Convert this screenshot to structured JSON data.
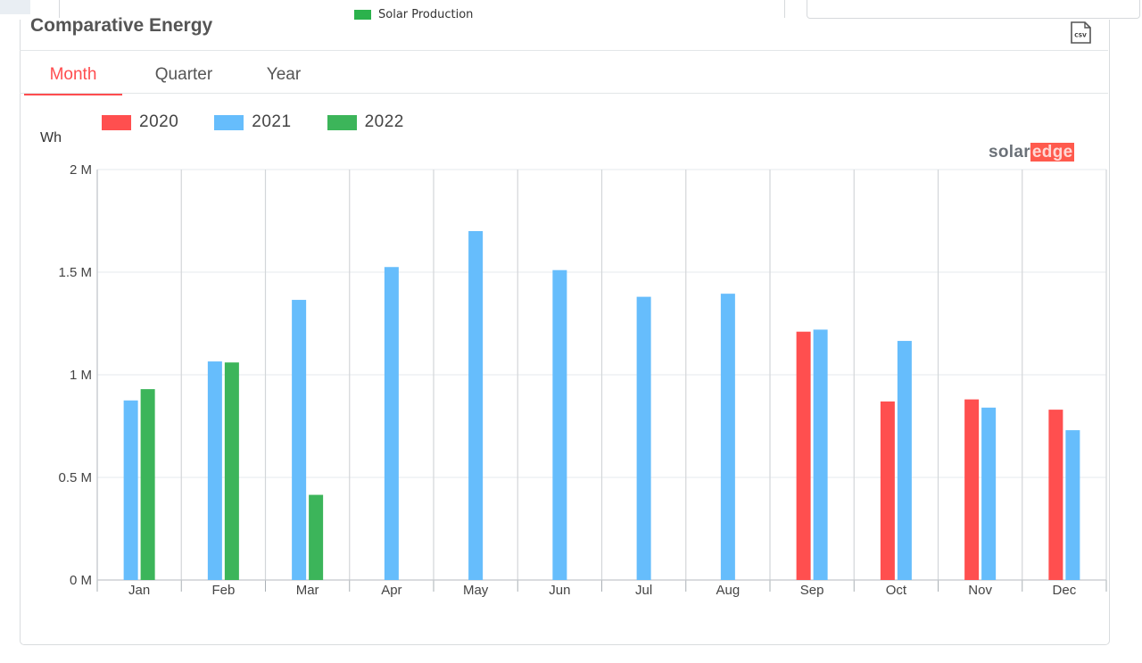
{
  "top_legend": {
    "label": "Solar Production",
    "color": "#2bb24c"
  },
  "header": {
    "title": "Comparative Energy",
    "csv_icon": "csv-file-icon"
  },
  "tabs": [
    {
      "label": "Month",
      "active": true
    },
    {
      "label": "Quarter",
      "active": false
    },
    {
      "label": "Year",
      "active": false
    }
  ],
  "brand": {
    "part1": "solar",
    "part2": "edge"
  },
  "chart_data": {
    "type": "bar",
    "categories": [
      "Jan",
      "Feb",
      "Mar",
      "Apr",
      "May",
      "Jun",
      "Jul",
      "Aug",
      "Sep",
      "Oct",
      "Nov",
      "Dec"
    ],
    "series": [
      {
        "name": "2020",
        "color": "#ff4f4f",
        "values": [
          null,
          null,
          null,
          null,
          null,
          null,
          null,
          null,
          1210000,
          870000,
          880000,
          830000
        ]
      },
      {
        "name": "2021",
        "color": "#66bdfc",
        "values": [
          875000,
          1065000,
          1365000,
          1525000,
          1700000,
          1510000,
          1380000,
          1395000,
          1220000,
          1165000,
          840000,
          730000
        ]
      },
      {
        "name": "2022",
        "color": "#3cb55a",
        "values": [
          930000,
          1060000,
          415000,
          null,
          null,
          null,
          null,
          null,
          null,
          null,
          null,
          null
        ]
      }
    ],
    "ylabel": "Wh",
    "ylim": [
      0,
      2000000
    ],
    "yticks": [
      {
        "value": 0,
        "label": "0 M"
      },
      {
        "value": 500000,
        "label": "0.5 M"
      },
      {
        "value": 1000000,
        "label": "1 M"
      },
      {
        "value": 1500000,
        "label": "1.5 M"
      },
      {
        "value": 2000000,
        "label": "2 M"
      }
    ],
    "grid": true,
    "legend_position": "top-left"
  }
}
